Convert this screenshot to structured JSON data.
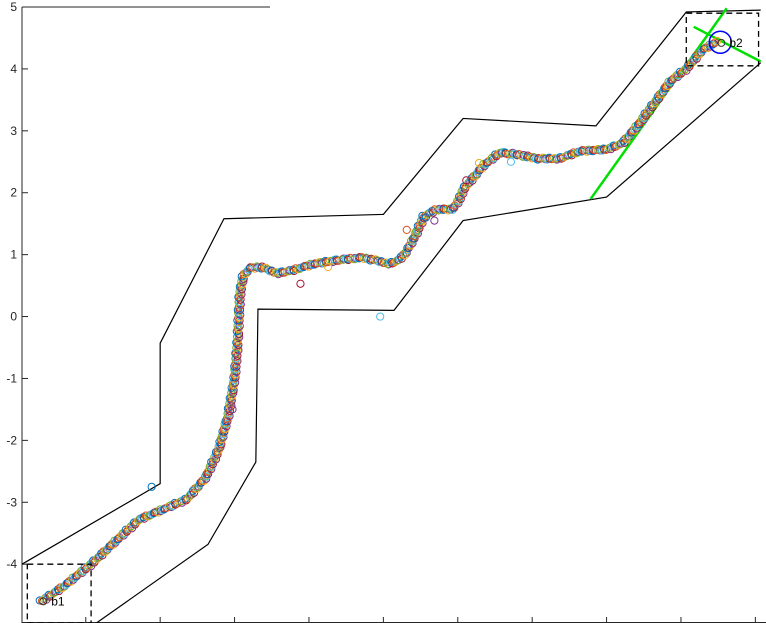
{
  "chart_data": {
    "type": "scatter",
    "title": "",
    "xlabel": "",
    "ylabel": "",
    "xlim": [
      -3.6,
      3.4
    ],
    "ylim": [
      -4.95,
      5.0
    ],
    "yticks": [
      5,
      4,
      3,
      2,
      1,
      0,
      -1,
      -2,
      -3,
      -4
    ],
    "ytick_labels": [
      "5",
      "4",
      "3",
      "2",
      "1",
      "0",
      "-1",
      "-2",
      "-3",
      "-4"
    ],
    "xticks": [
      -3,
      -2.3,
      -1.6,
      -0.9,
      -0.2,
      0.5,
      1.2,
      1.9,
      2.6,
      3.3
    ],
    "grid": false,
    "colors": {
      "axis": "#262626",
      "boundary": "#000000",
      "green_lines": "#00e000",
      "goal_circle": "#0000ff",
      "markers": [
        "#0072bd",
        "#d95319",
        "#edb120",
        "#7e2f8e",
        "#77ac30",
        "#4dbeee",
        "#a2142f"
      ]
    },
    "corridor_outer": {
      "x": [
        -3.6,
        -2.3,
        -2.3,
        -1.7,
        -0.2,
        0.55,
        1.8,
        2.65,
        3.35
      ],
      "y": [
        -4.0,
        -2.7,
        -0.43,
        1.58,
        1.65,
        3.2,
        3.08,
        4.92,
        4.95
      ]
    },
    "corridor_inner": {
      "x": [
        -2.9,
        -1.85,
        -1.4,
        -1.38,
        -0.1,
        0.55,
        1.9,
        3.35
      ],
      "y": [
        -4.95,
        -3.68,
        -2.35,
        0.12,
        0.1,
        1.55,
        1.93,
        4.1
      ]
    },
    "green_segments": [
      {
        "x": [
          1.75,
          3.03
        ],
        "y": [
          1.9,
          4.98
        ]
      },
      {
        "x": [
          2.72,
          3.35
        ],
        "y": [
          4.68,
          4.12
        ]
      }
    ],
    "boxes": [
      {
        "label": "b1",
        "x": [
          -3.55,
          -2.95
        ],
        "y": [
          -4.95,
          -4.0
        ],
        "marker": [
          -3.4,
          -4.6
        ]
      },
      {
        "label": "b2",
        "x": [
          2.65,
          3.33
        ],
        "y": [
          4.05,
          4.9
        ],
        "marker": [
          2.98,
          4.42
        ]
      }
    ],
    "goal_circle": {
      "x": 2.97,
      "y": 4.43,
      "r": 0.12
    },
    "series": [
      {
        "x": [
          -3.42,
          -3.2,
          -2.95,
          -2.7,
          -2.5,
          -2.25,
          -2.05,
          -1.87,
          -1.75,
          -1.66,
          -1.6,
          -1.57,
          -1.56,
          -1.55,
          -1.52,
          -1.46,
          -1.35,
          -1.2,
          -1.05,
          -0.85,
          -0.6,
          -0.4,
          -0.25,
          -0.15,
          -0.07,
          0.0,
          0.1,
          0.18,
          0.3,
          0.45,
          0.52,
          0.55,
          0.6,
          0.75,
          0.9,
          1.05,
          1.25,
          1.45,
          1.65,
          1.9,
          2.05,
          2.2,
          2.35,
          2.5,
          2.65,
          2.8,
          2.95
        ],
        "y": [
          -4.6,
          -4.35,
          -4.0,
          -3.6,
          -3.28,
          -3.1,
          -2.95,
          -2.6,
          -2.15,
          -1.6,
          -1.0,
          -0.4,
          0.0,
          0.35,
          0.65,
          0.78,
          0.8,
          0.7,
          0.75,
          0.85,
          0.92,
          0.95,
          0.9,
          0.85,
          0.9,
          1.0,
          1.3,
          1.62,
          1.73,
          1.73,
          1.9,
          2.05,
          2.15,
          2.45,
          2.65,
          2.62,
          2.55,
          2.55,
          2.67,
          2.7,
          2.8,
          3.1,
          3.45,
          3.8,
          4.0,
          4.3,
          4.45
        ]
      }
    ],
    "outliers": {
      "x": [
        -2.38,
        -1.62,
        -0.98,
        -0.72,
        -0.23,
        0.02,
        0.1,
        0.2,
        0.28,
        0.58,
        0.7,
        1.0
      ],
      "y": [
        -2.75,
        -1.5,
        0.53,
        0.8,
        0.0,
        1.4,
        1.35,
        1.6,
        1.55,
        2.2,
        2.48,
        2.5
      ]
    },
    "annotations": [
      "b1",
      "b2"
    ]
  }
}
